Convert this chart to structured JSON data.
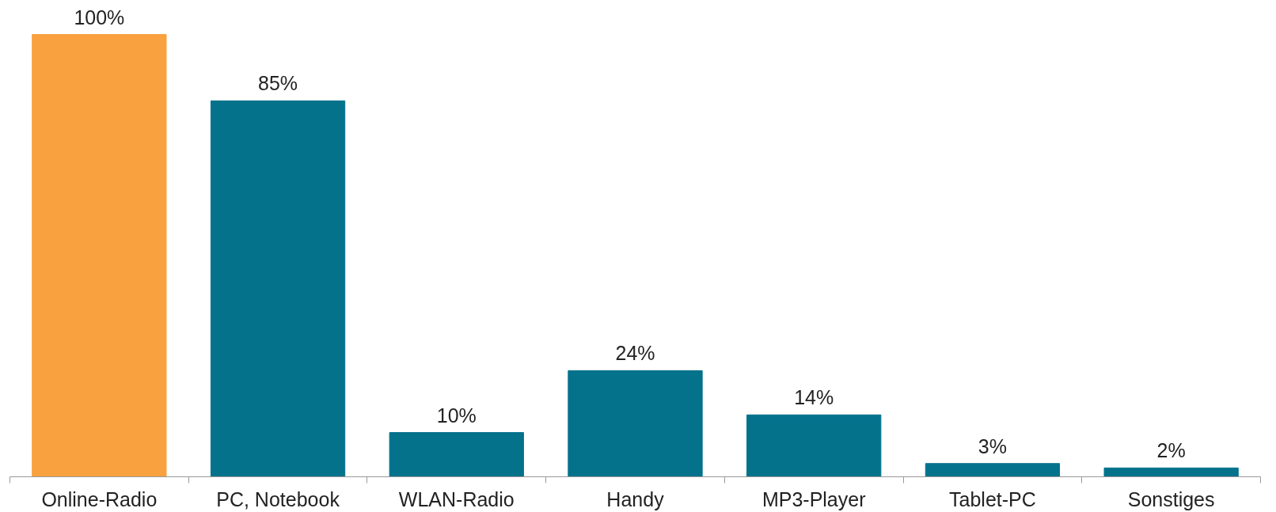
{
  "chart_data": {
    "type": "bar",
    "categories": [
      "Online-Radio",
      "PC, Notebook",
      "WLAN-Radio",
      "Handy",
      "MP3-Player",
      "Tablet-PC",
      "Sonstiges"
    ],
    "values": [
      100,
      85,
      10,
      24,
      14,
      3,
      2
    ],
    "colors": [
      "#f9a03f",
      "#05728c",
      "#05728c",
      "#05728c",
      "#05728c",
      "#05728c",
      "#05728c"
    ],
    "value_labels": [
      "100%",
      "85%",
      "10%",
      "24%",
      "14%",
      "3%",
      "2%"
    ],
    "grid": false
  }
}
